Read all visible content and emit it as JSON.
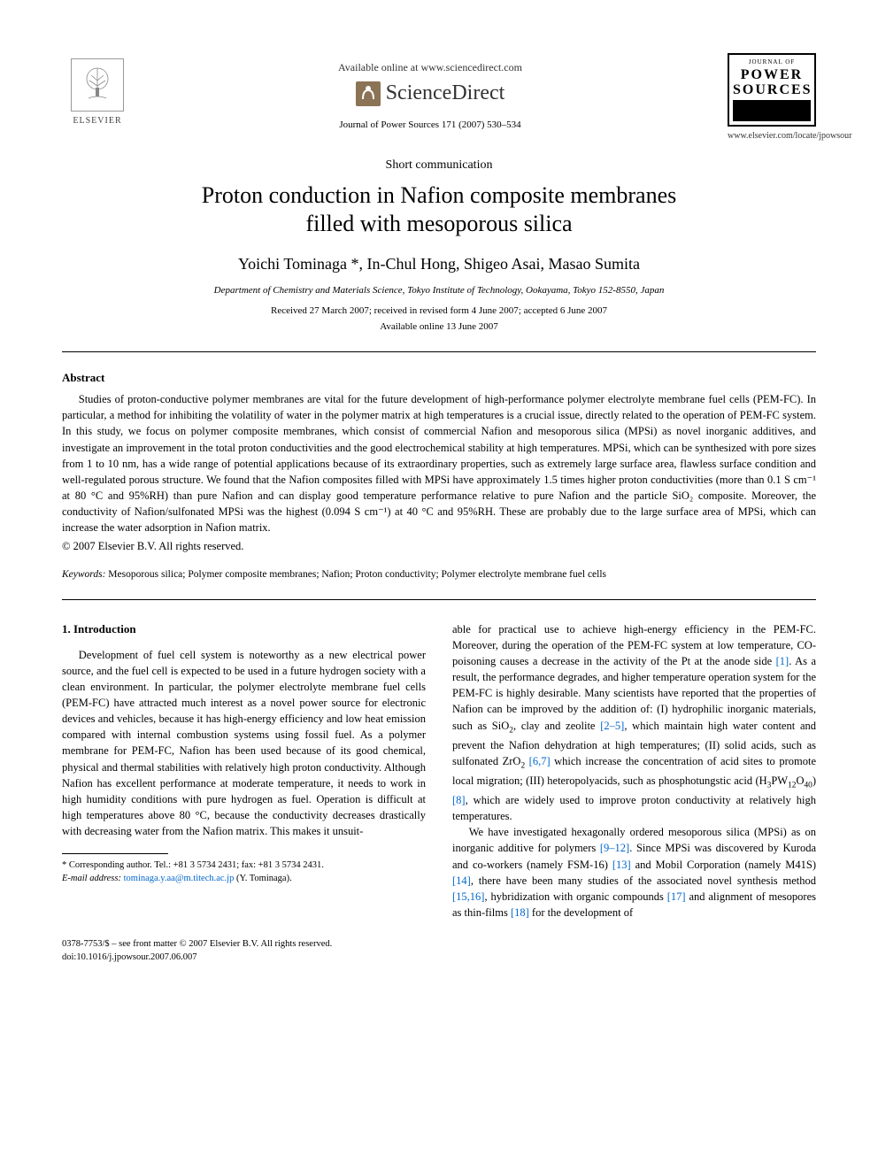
{
  "header": {
    "publisher": "ELSEVIER",
    "available_online": "Available online at www.sciencedirect.com",
    "sciencedirect": "ScienceDirect",
    "journal_ref": "Journal of Power Sources 171 (2007) 530–534",
    "journal_logo_top": "JOURNAL OF",
    "journal_logo_main1": "POWER",
    "journal_logo_main2": "SOURCES",
    "journal_url": "www.elsevier.com/locate/jpowsour"
  },
  "article": {
    "type": "Short communication",
    "title_line1": "Proton conduction in Nafion composite membranes",
    "title_line2": "filled with mesoporous silica",
    "authors": "Yoichi Tominaga *, In-Chul Hong, Shigeo Asai, Masao Sumita",
    "affiliation": "Department of Chemistry and Materials Science, Tokyo Institute of Technology, Ookayama, Tokyo 152-8550, Japan",
    "dates_line1": "Received 27 March 2007; received in revised form 4 June 2007; accepted 6 June 2007",
    "dates_line2": "Available online 13 June 2007"
  },
  "abstract": {
    "heading": "Abstract",
    "text": "Studies of proton-conductive polymer membranes are vital for the future development of high-performance polymer electrolyte membrane fuel cells (PEM-FC). In particular, a method for inhibiting the volatility of water in the polymer matrix at high temperatures is a crucial issue, directly related to the operation of PEM-FC system. In this study, we focus on polymer composite membranes, which consist of commercial Nafion and mesoporous silica (MPSi) as novel inorganic additives, and investigate an improvement in the total proton conductivities and the good electrochemical stability at high temperatures. MPSi, which can be synthesized with pore sizes from 1 to 10 nm, has a wide range of potential applications because of its extraordinary properties, such as extremely large surface area, flawless surface condition and well-regulated porous structure. We found that the Nafion composites filled with MPSi have approximately 1.5 times higher proton conductivities (more than 0.1 S cm⁻¹ at 80 °C and 95%RH) than pure Nafion and can display good temperature performance relative to pure Nafion and the particle SiO₂ composite. Moreover, the conductivity of Nafion/sulfonated MPSi was the highest (0.094 S cm⁻¹) at 40 °C and 95%RH. These are probably due to the large surface area of MPSi, which can increase the water adsorption in Nafion matrix.",
    "copyright": "© 2007 Elsevier B.V. All rights reserved."
  },
  "keywords": {
    "label": "Keywords:",
    "text": "Mesoporous silica; Polymer composite membranes; Nafion; Proton conductivity; Polymer electrolyte membrane fuel cells"
  },
  "section1": {
    "heading": "1. Introduction",
    "col1_para": "Development of fuel cell system is noteworthy as a new electrical power source, and the fuel cell is expected to be used in a future hydrogen society with a clean environment. In particular, the polymer electrolyte membrane fuel cells (PEM-FC) have attracted much interest as a novel power source for electronic devices and vehicles, because it has high-energy efficiency and low heat emission compared with internal combustion systems using fossil fuel. As a polymer membrane for PEM-FC, Nafion has been used because of its good chemical, physical and thermal stabilities with relatively high proton conductivity. Although Nafion has excellent performance at moderate temperature, it needs to work in high humidity conditions with pure hydrogen as fuel. Operation is difficult at high temperatures above 80 °C, because the conductivity decreases drastically with decreasing water from the Nafion matrix. This makes it unsuit-",
    "col2_para1_html": "able for practical use to achieve high-energy efficiency in the PEM-FC. Moreover, during the operation of the PEM-FC system at low temperature, CO-poisoning causes a decrease in the activity of the Pt at the anode side <span class=\"ref-link\">[1]</span>. As a result, the performance degrades, and higher temperature operation system for the PEM-FC is highly desirable. Many scientists have reported that the properties of Nafion can be improved by the addition of: (I) hydrophilic inorganic materials, such as SiO<sub>2</sub>, clay and zeolite <span class=\"ref-link\">[2–5]</span>, which maintain high water content and prevent the Nafion dehydration at high temperatures; (II) solid acids, such as sulfonated ZrO<sub>2</sub> <span class=\"ref-link\">[6,7]</span> which increase the concentration of acid sites to promote local migration; (III) heteropolyacids, such as phosphotungstic acid (H<sub>3</sub>PW<sub>12</sub>O<sub>40</sub>) <span class=\"ref-link\">[8]</span>, which are widely used to improve proton conductivity at relatively high temperatures.",
    "col2_para2_html": "We have investigated hexagonally ordered mesoporous silica (MPSi) as on inorganic additive for polymers <span class=\"ref-link\">[9–12]</span>. Since MPSi was discovered by Kuroda and co-workers (namely FSM-16) <span class=\"ref-link\">[13]</span> and Mobil Corporation (namely M41S) <span class=\"ref-link\">[14]</span>, there have been many studies of the associated novel synthesis method <span class=\"ref-link\">[15,16]</span>, hybridization with organic compounds <span class=\"ref-link\">[17]</span> and alignment of mesopores as thin-films <span class=\"ref-link\">[18]</span> for the development of"
  },
  "footnote": {
    "corresponding": "* Corresponding author. Tel.: +81 3 5734 2431; fax: +81 3 5734 2431.",
    "email_label": "E-mail address:",
    "email": "tominaga.y.aa@m.titech.ac.jp",
    "email_name": "(Y. Tominaga)."
  },
  "bottom": {
    "line1": "0378-7753/$ – see front matter © 2007 Elsevier B.V. All rights reserved.",
    "line2": "doi:10.1016/j.jpowsour.2007.06.007"
  },
  "colors": {
    "link": "#0066cc",
    "text": "#000000",
    "sd_icon": "#8b7355"
  }
}
